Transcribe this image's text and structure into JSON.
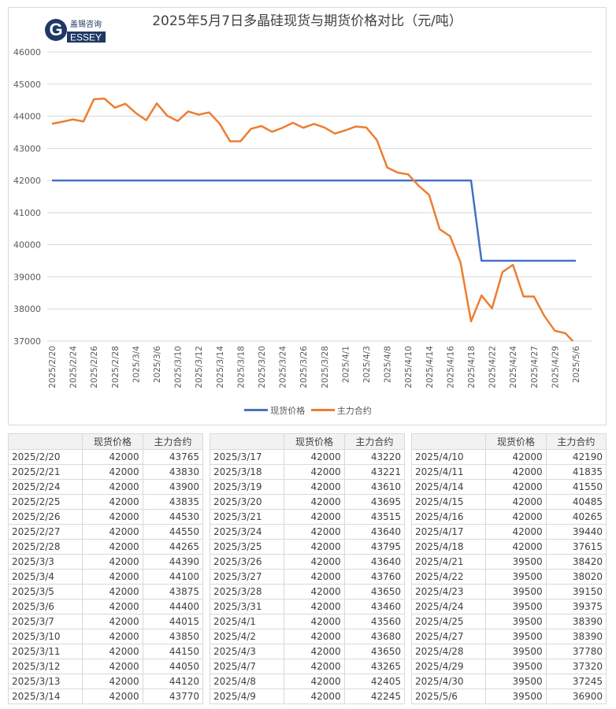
{
  "logo": {
    "cn": "盖锡咨询",
    "en": "ESSEY",
    "letter": "G"
  },
  "chart_data": {
    "type": "line",
    "title": "2025年5月7日多晶硅现货与期货价格对比（元/吨）",
    "xlabel": "",
    "ylabel": "",
    "ylim": [
      37000,
      46000
    ],
    "yticks": [
      37000,
      38000,
      39000,
      40000,
      41000,
      42000,
      43000,
      44000,
      45000,
      46000
    ],
    "grid": true,
    "legend_position": "bottom",
    "categories": [
      "2025/2/20",
      "2025/2/21",
      "2025/2/24",
      "2025/2/25",
      "2025/2/26",
      "2025/2/27",
      "2025/2/28",
      "2025/3/3",
      "2025/3/4",
      "2025/3/5",
      "2025/3/6",
      "2025/3/7",
      "2025/3/10",
      "2025/3/11",
      "2025/3/12",
      "2025/3/13",
      "2025/3/14",
      "2025/3/17",
      "2025/3/18",
      "2025/3/19",
      "2025/3/20",
      "2025/3/21",
      "2025/3/24",
      "2025/3/25",
      "2025/3/26",
      "2025/3/27",
      "2025/3/28",
      "2025/3/31",
      "2025/4/1",
      "2025/4/2",
      "2025/4/3",
      "2025/4/7",
      "2025/4/8",
      "2025/4/9",
      "2025/4/10",
      "2025/4/11",
      "2025/4/14",
      "2025/4/15",
      "2025/4/16",
      "2025/4/17",
      "2025/4/18",
      "2025/4/21",
      "2025/4/22",
      "2025/4/23",
      "2025/4/24",
      "2025/4/25",
      "2025/4/27",
      "2025/4/28",
      "2025/4/29",
      "2025/4/30",
      "2025/5/6"
    ],
    "tick_every": 2,
    "series": [
      {
        "name": "现货价格",
        "color": "#4472c4",
        "values": [
          42000,
          42000,
          42000,
          42000,
          42000,
          42000,
          42000,
          42000,
          42000,
          42000,
          42000,
          42000,
          42000,
          42000,
          42000,
          42000,
          42000,
          42000,
          42000,
          42000,
          42000,
          42000,
          42000,
          42000,
          42000,
          42000,
          42000,
          42000,
          42000,
          42000,
          42000,
          42000,
          42000,
          42000,
          42000,
          42000,
          42000,
          42000,
          42000,
          42000,
          42000,
          39500,
          39500,
          39500,
          39500,
          39500,
          39500,
          39500,
          39500,
          39500,
          39500
        ]
      },
      {
        "name": "主力合约",
        "color": "#ed7d31",
        "values": [
          43765,
          43830,
          43900,
          43835,
          44530,
          44550,
          44265,
          44390,
          44100,
          43875,
          44400,
          44015,
          43850,
          44150,
          44050,
          44120,
          43770,
          43220,
          43221,
          43610,
          43695,
          43515,
          43640,
          43795,
          43640,
          43760,
          43650,
          43460,
          43560,
          43680,
          43650,
          43265,
          42405,
          42245,
          42190,
          41835,
          41550,
          40485,
          40265,
          39440,
          37615,
          38420,
          38020,
          39150,
          39375,
          38390,
          38390,
          37780,
          37320,
          37245,
          36900
        ]
      }
    ]
  }
}
